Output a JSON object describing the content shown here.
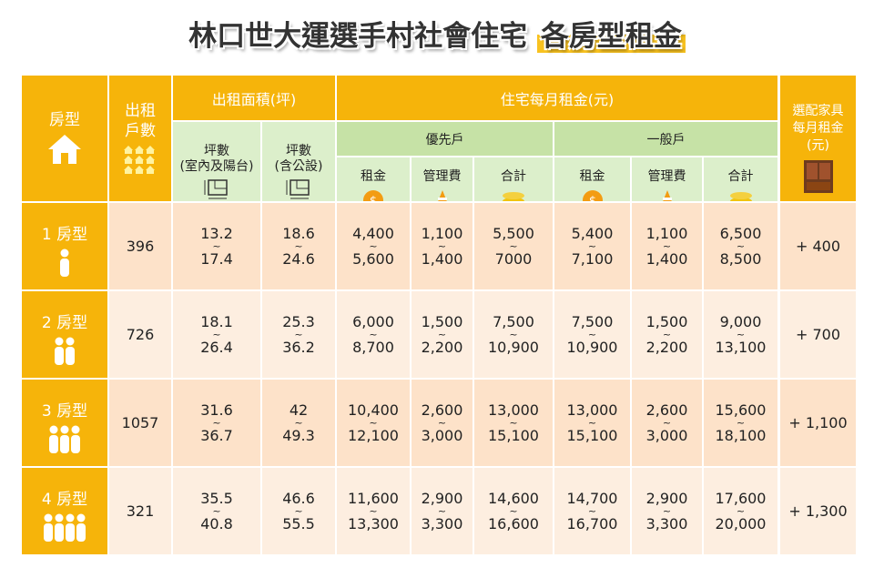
{
  "title": {
    "main": "林口世大運選手村社會住宅",
    "highlight": "各房型租金"
  },
  "header": {
    "room_type": "房型",
    "units": "出租戶數",
    "area": "出租面積(坪)",
    "area_indoor": [
      "坪數",
      "(室內及陽台)"
    ],
    "area_public": [
      "坪數",
      "(含公設)"
    ],
    "rent": "住宅每月租金(元)",
    "priority": "優先戶",
    "general": "一般戶",
    "priority_cols": [
      "租金",
      "管理費",
      "合計"
    ],
    "general_cols": [
      "租金",
      "管理費",
      "合計"
    ],
    "furniture": "選配家具每月租金(元)"
  },
  "range_separator": "~",
  "rows": [
    {
      "type": "1 房型",
      "units": "396",
      "ranges": [
        [
          "13.2",
          "17.4"
        ],
        [
          "18.6",
          "24.6"
        ],
        [
          "4,400",
          "5,600"
        ],
        [
          "1,100",
          "1,400"
        ],
        [
          "5,500",
          "7000"
        ],
        [
          "5,400",
          "7,100"
        ],
        [
          "1,100",
          "1,400"
        ],
        [
          "6,500",
          "8,500"
        ]
      ],
      "furniture": "+ 400"
    },
    {
      "type": "2 房型",
      "units": "726",
      "ranges": [
        [
          "18.1",
          "26.4"
        ],
        [
          "25.3",
          "36.2"
        ],
        [
          "6,000",
          "8,700"
        ],
        [
          "1,500",
          "2,200"
        ],
        [
          "7,500",
          "10,900"
        ],
        [
          "7,500",
          "10,900"
        ],
        [
          "1,500",
          "2,200"
        ],
        [
          "9,000",
          "13,100"
        ]
      ],
      "furniture": "+ 700"
    },
    {
      "type": "3 房型",
      "units": "1057",
      "ranges": [
        [
          "31.6",
          "36.7"
        ],
        [
          "42",
          "49.3"
        ],
        [
          "10,400",
          "12,100"
        ],
        [
          "2,600",
          "3,000"
        ],
        [
          "13,000",
          "15,100"
        ],
        [
          "13,000",
          "15,100"
        ],
        [
          "2,600",
          "3,000"
        ],
        [
          "15,600",
          "18,100"
        ]
      ],
      "furniture": "+ 1,100"
    },
    {
      "type": "4 房型",
      "units": "321",
      "ranges": [
        [
          "35.5",
          "40.8"
        ],
        [
          "46.6",
          "55.5"
        ],
        [
          "11,600",
          "13,300"
        ],
        [
          "2,900",
          "3,300"
        ],
        [
          "14,600",
          "16,600"
        ],
        [
          "14,700",
          "16,700"
        ],
        [
          "2,900",
          "3,300"
        ],
        [
          "17,600",
          "20,000"
        ]
      ],
      "furniture": "+ 1,300"
    }
  ]
}
